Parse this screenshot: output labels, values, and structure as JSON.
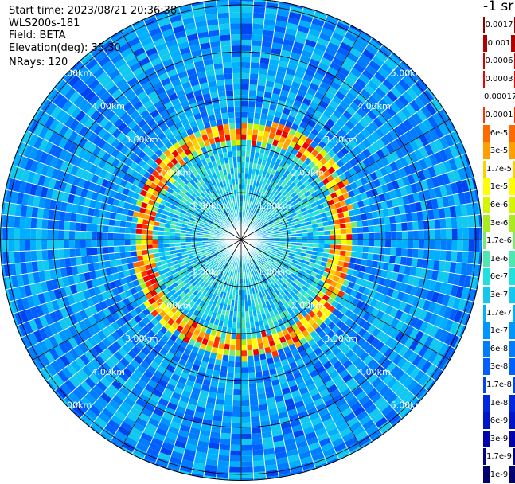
{
  "header": {
    "start_time": "Start time: 2023/08/21 20:36:38",
    "device": "WLS200s-181",
    "field": "Field: BETA",
    "elevation": "Elevation(deg): 35.30",
    "nrays": "NRays: 120"
  },
  "unit_label": "-1 sr",
  "colorbar": [
    {
      "label": "0.0017",
      "color": "#8b0000",
      "text": "#ffffff"
    },
    {
      "label": "0.001",
      "color": "#b20000",
      "text": "#ffffff"
    },
    {
      "label": "0.0006",
      "color": "#d40000",
      "text": "#ffffff"
    },
    {
      "label": "0.0003",
      "color": "#f00000",
      "text": "#ffffff"
    },
    {
      "label": "0.00017",
      "color": "#ffffff",
      "text": "#000000"
    },
    {
      "label": "0.0001",
      "color": "#ff3000",
      "text": "#000000"
    },
    {
      "label": "6e-5",
      "color": "#ff6a00",
      "text": "#000000"
    },
    {
      "label": "3e-5",
      "color": "#ffa000",
      "text": "#000000"
    },
    {
      "label": "1.7e-5",
      "color": "#ffd000",
      "text": "#000000"
    },
    {
      "label": "1e-5",
      "color": "#ffff00",
      "text": "#000000"
    },
    {
      "label": "6e-6",
      "color": "#d4f400",
      "text": "#000000"
    },
    {
      "label": "3e-6",
      "color": "#a8ec20",
      "text": "#000000"
    },
    {
      "label": "1.7e-6",
      "color": "#7ce870",
      "text": "#000000"
    },
    {
      "label": "1e-6",
      "color": "#4ce8b0",
      "text": "#000000"
    },
    {
      "label": "6e-7",
      "color": "#20e0e0",
      "text": "#000000"
    },
    {
      "label": "3e-7",
      "color": "#10c8f0",
      "text": "#000000"
    },
    {
      "label": "1.7e-7",
      "color": "#00b0ff",
      "text": "#000000"
    },
    {
      "label": "1e-7",
      "color": "#0096ff",
      "text": "#000000"
    },
    {
      "label": "6e-8",
      "color": "#007cff",
      "text": "#000000"
    },
    {
      "label": "3e-8",
      "color": "#0060ff",
      "text": "#000000"
    },
    {
      "label": "1.7e-8",
      "color": "#0044f0",
      "text": "#ffffff"
    },
    {
      "label": "1e-8",
      "color": "#0028e0",
      "text": "#ffffff"
    },
    {
      "label": "6e-9",
      "color": "#0014c8",
      "text": "#ffffff"
    },
    {
      "label": "3e-9",
      "color": "#0000b0",
      "text": "#ffffff"
    },
    {
      "label": "1.7e-9",
      "color": "#000090",
      "text": "#ffffff"
    },
    {
      "label": "1e-9",
      "color": "#000070",
      "text": "#ffffff"
    }
  ],
  "chart_data": {
    "type": "heatmap",
    "projection": "polar",
    "field": "BETA",
    "elevation_deg": 35.3,
    "n_rays": 120,
    "range_rings_km": [
      1.0,
      2.0,
      3.0,
      4.0,
      5.0
    ],
    "ring_labels": [
      "1.00km",
      "2.00km",
      "3.00km",
      "4.00km",
      "5.00km"
    ],
    "max_range_km": 5.2,
    "spoke_angles_deg": [
      0,
      30,
      60,
      90,
      120,
      150,
      180,
      210,
      240,
      270,
      300,
      330
    ],
    "background_level": "3e-8 to 1e-7",
    "inner_level": "1.7e-7 to 6e-7",
    "ring_feature": {
      "description_levels": "3e-5 to 0.0003",
      "radius_km_by_azimuth": [
        [
          0,
          2.25
        ],
        [
          30,
          2.4
        ],
        [
          60,
          2.3
        ],
        [
          90,
          2.15
        ],
        [
          120,
          2.2
        ],
        [
          150,
          2.35
        ],
        [
          180,
          2.3
        ],
        [
          210,
          2.25
        ],
        [
          240,
          2.2
        ],
        [
          270,
          2.05
        ],
        [
          300,
          2.15
        ],
        [
          330,
          2.3
        ]
      ]
    },
    "grid": true
  }
}
